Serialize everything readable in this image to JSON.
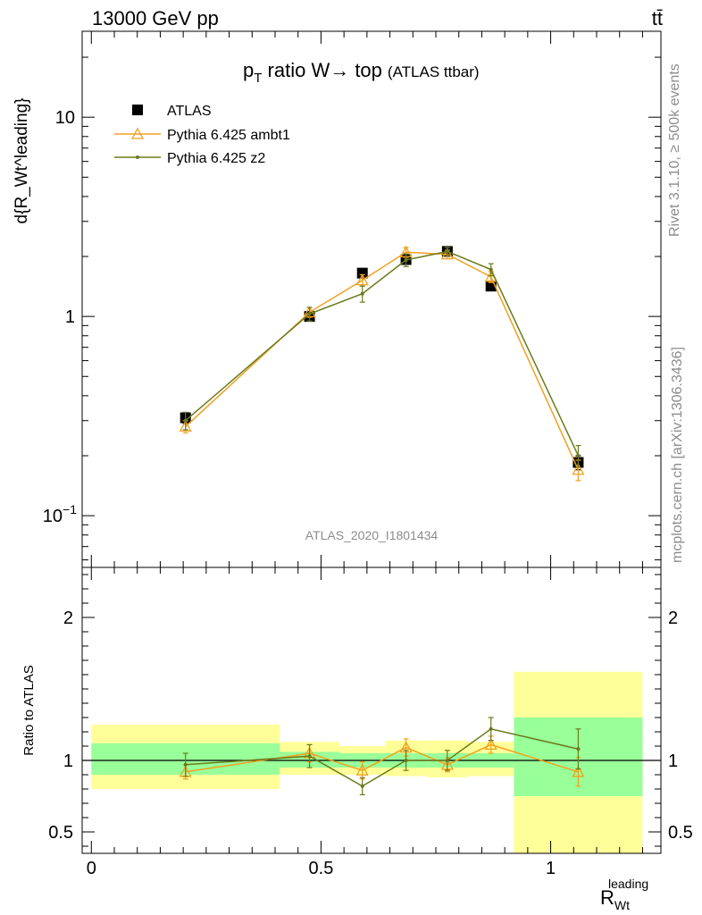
{
  "header": {
    "left": "13000 GeV pp",
    "right": "tt̄"
  },
  "side": {
    "rivet": "Rivet 3.1.10, ≥ 500k events",
    "mcplots": "mcplots.cern.ch [arXiv:1306.3436]"
  },
  "chart_data": [
    {
      "type": "line",
      "title_main": "p",
      "title_sub": "T",
      "title_rest": " ratio W→ top",
      "title_paren": "(ATLAS ttbar)",
      "ylabel": "d{R_Wt^leading}",
      "yscale": "log",
      "ylim": [
        0.055,
        27
      ],
      "xlim": [
        -0.02,
        1.24
      ],
      "y_ticks": [
        {
          "v": 10,
          "label": "10"
        },
        {
          "v": 1,
          "label": "1"
        },
        {
          "v": 0.1,
          "label": "10",
          "exp": "−1"
        }
      ],
      "watermark": "ATLAS_2020_I1801434",
      "bins": [
        0,
        0.41,
        0.54,
        0.64,
        0.73,
        0.82,
        0.92,
        1.2
      ],
      "series": [
        {
          "name": "ATLAS",
          "color": "#000000",
          "marker": "square",
          "x": [
            0.205,
            0.475,
            0.59,
            0.685,
            0.775,
            0.87,
            1.06
          ],
          "y": [
            0.31,
            1.0,
            1.65,
            1.93,
            2.12,
            1.42,
            0.185
          ],
          "err": [
            0.02,
            0.05,
            0.08,
            0.1,
            0.1,
            0.07,
            0.015
          ]
        },
        {
          "name": "Pythia 6.425 ambt1",
          "color": "#f0a020",
          "marker": "triangle",
          "x": [
            0.205,
            0.475,
            0.59,
            0.685,
            0.775,
            0.87,
            1.06
          ],
          "y": [
            0.28,
            1.05,
            1.52,
            2.1,
            2.05,
            1.58,
            0.17
          ],
          "err": [
            0.02,
            0.06,
            0.1,
            0.12,
            0.1,
            0.1,
            0.02
          ]
        },
        {
          "name": "Pythia 6.425 z2",
          "color": "#6b7a1a",
          "marker": "dot",
          "x": [
            0.205,
            0.475,
            0.59,
            0.685,
            0.775,
            0.87,
            1.06
          ],
          "y": [
            0.3,
            1.03,
            1.3,
            1.92,
            2.12,
            1.72,
            0.2
          ],
          "err": [
            0.03,
            0.08,
            0.12,
            0.14,
            0.1,
            0.12,
            0.025
          ]
        }
      ]
    },
    {
      "type": "line",
      "ylabel": "Ratio to ATLAS",
      "xlabel": "R",
      "xlabel_sub": "Wt",
      "xlabel_sup": "leading",
      "ylim": [
        0.35,
        2.35
      ],
      "xlim": [
        -0.02,
        1.24
      ],
      "x_ticks": [
        {
          "v": 0,
          "label": "0"
        },
        {
          "v": 0.5,
          "label": "0.5"
        },
        {
          "v": 1,
          "label": "1"
        }
      ],
      "y_ticks": [
        {
          "v": 2,
          "label": "2"
        },
        {
          "v": 1,
          "label": "1"
        },
        {
          "v": 0.5,
          "label": "0.5"
        }
      ],
      "bands": [
        {
          "x0": 0,
          "x1": 0.41,
          "inner": [
            0.9,
            1.12
          ],
          "outer": [
            0.8,
            1.25
          ]
        },
        {
          "x0": 0.41,
          "x1": 0.54,
          "inner": [
            0.95,
            1.06
          ],
          "outer": [
            0.9,
            1.13
          ]
        },
        {
          "x0": 0.54,
          "x1": 0.64,
          "inner": [
            0.95,
            1.05
          ],
          "outer": [
            0.9,
            1.1
          ]
        },
        {
          "x0": 0.64,
          "x1": 0.73,
          "inner": [
            0.95,
            1.05
          ],
          "outer": [
            0.89,
            1.14
          ]
        },
        {
          "x0": 0.73,
          "x1": 0.82,
          "inner": [
            0.95,
            1.05
          ],
          "outer": [
            0.88,
            1.14
          ]
        },
        {
          "x0": 0.82,
          "x1": 0.92,
          "inner": [
            0.95,
            1.05
          ],
          "outer": [
            0.89,
            1.13
          ]
        },
        {
          "x0": 0.92,
          "x1": 1.2,
          "inner": [
            0.75,
            1.3
          ],
          "outer": [
            0.35,
            1.62
          ]
        }
      ],
      "series": [
        {
          "name": "Pythia 6.425 ambt1",
          "color": "#f0a020",
          "marker": "triangle",
          "x": [
            0.205,
            0.475,
            0.59,
            0.685,
            0.775,
            0.87,
            1.06
          ],
          "y": [
            0.92,
            1.05,
            0.93,
            1.09,
            0.97,
            1.11,
            0.92
          ],
          "err": [
            0.05,
            0.06,
            0.06,
            0.06,
            0.05,
            0.06,
            0.1
          ]
        },
        {
          "name": "Pythia 6.425 z2",
          "color": "#6b7a1a",
          "marker": "dot",
          "x": [
            0.205,
            0.475,
            0.59,
            0.685,
            0.775,
            0.87,
            1.06
          ],
          "y": [
            0.97,
            1.03,
            0.82,
            1.0,
            1.0,
            1.22,
            1.08
          ],
          "err": [
            0.08,
            0.08,
            0.06,
            0.07,
            0.07,
            0.08,
            0.14
          ]
        }
      ]
    }
  ]
}
